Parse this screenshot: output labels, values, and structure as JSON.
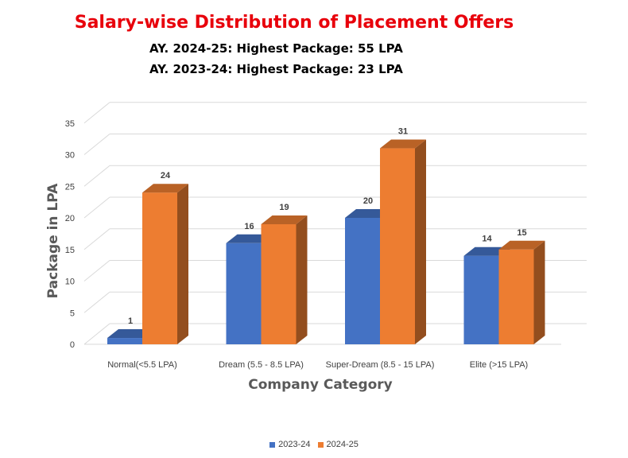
{
  "chart_data": {
    "type": "bar",
    "title": "Salary-wise Distribution of Placement Offers",
    "subtitles": [
      "AY. 2024-25: Highest Package: 55 LPA",
      "AY. 2023-24: Highest Package: 23 LPA"
    ],
    "xlabel": "Company Category",
    "ylabel": "Package in LPA",
    "categories": [
      "Normal(<5.5 LPA)",
      "Dream (5.5 - 8.5 LPA)",
      "Super-Dream (8.5 - 15 LPA)",
      "Elite (>15 LPA)"
    ],
    "series": [
      {
        "name": "2023-24",
        "values": [
          1,
          16,
          20,
          14
        ],
        "color": "#4472C4"
      },
      {
        "name": "2024-25",
        "values": [
          24,
          19,
          31,
          15
        ],
        "color": "#ED7D31"
      }
    ],
    "ylim": [
      0,
      35
    ],
    "yticks": [
      "0",
      "5",
      "10",
      "15",
      "20",
      "25",
      "30",
      "35"
    ],
    "style": "3d-clustered-column",
    "grid": true,
    "legend_position": "bottom",
    "title_color": "#E8000B"
  }
}
